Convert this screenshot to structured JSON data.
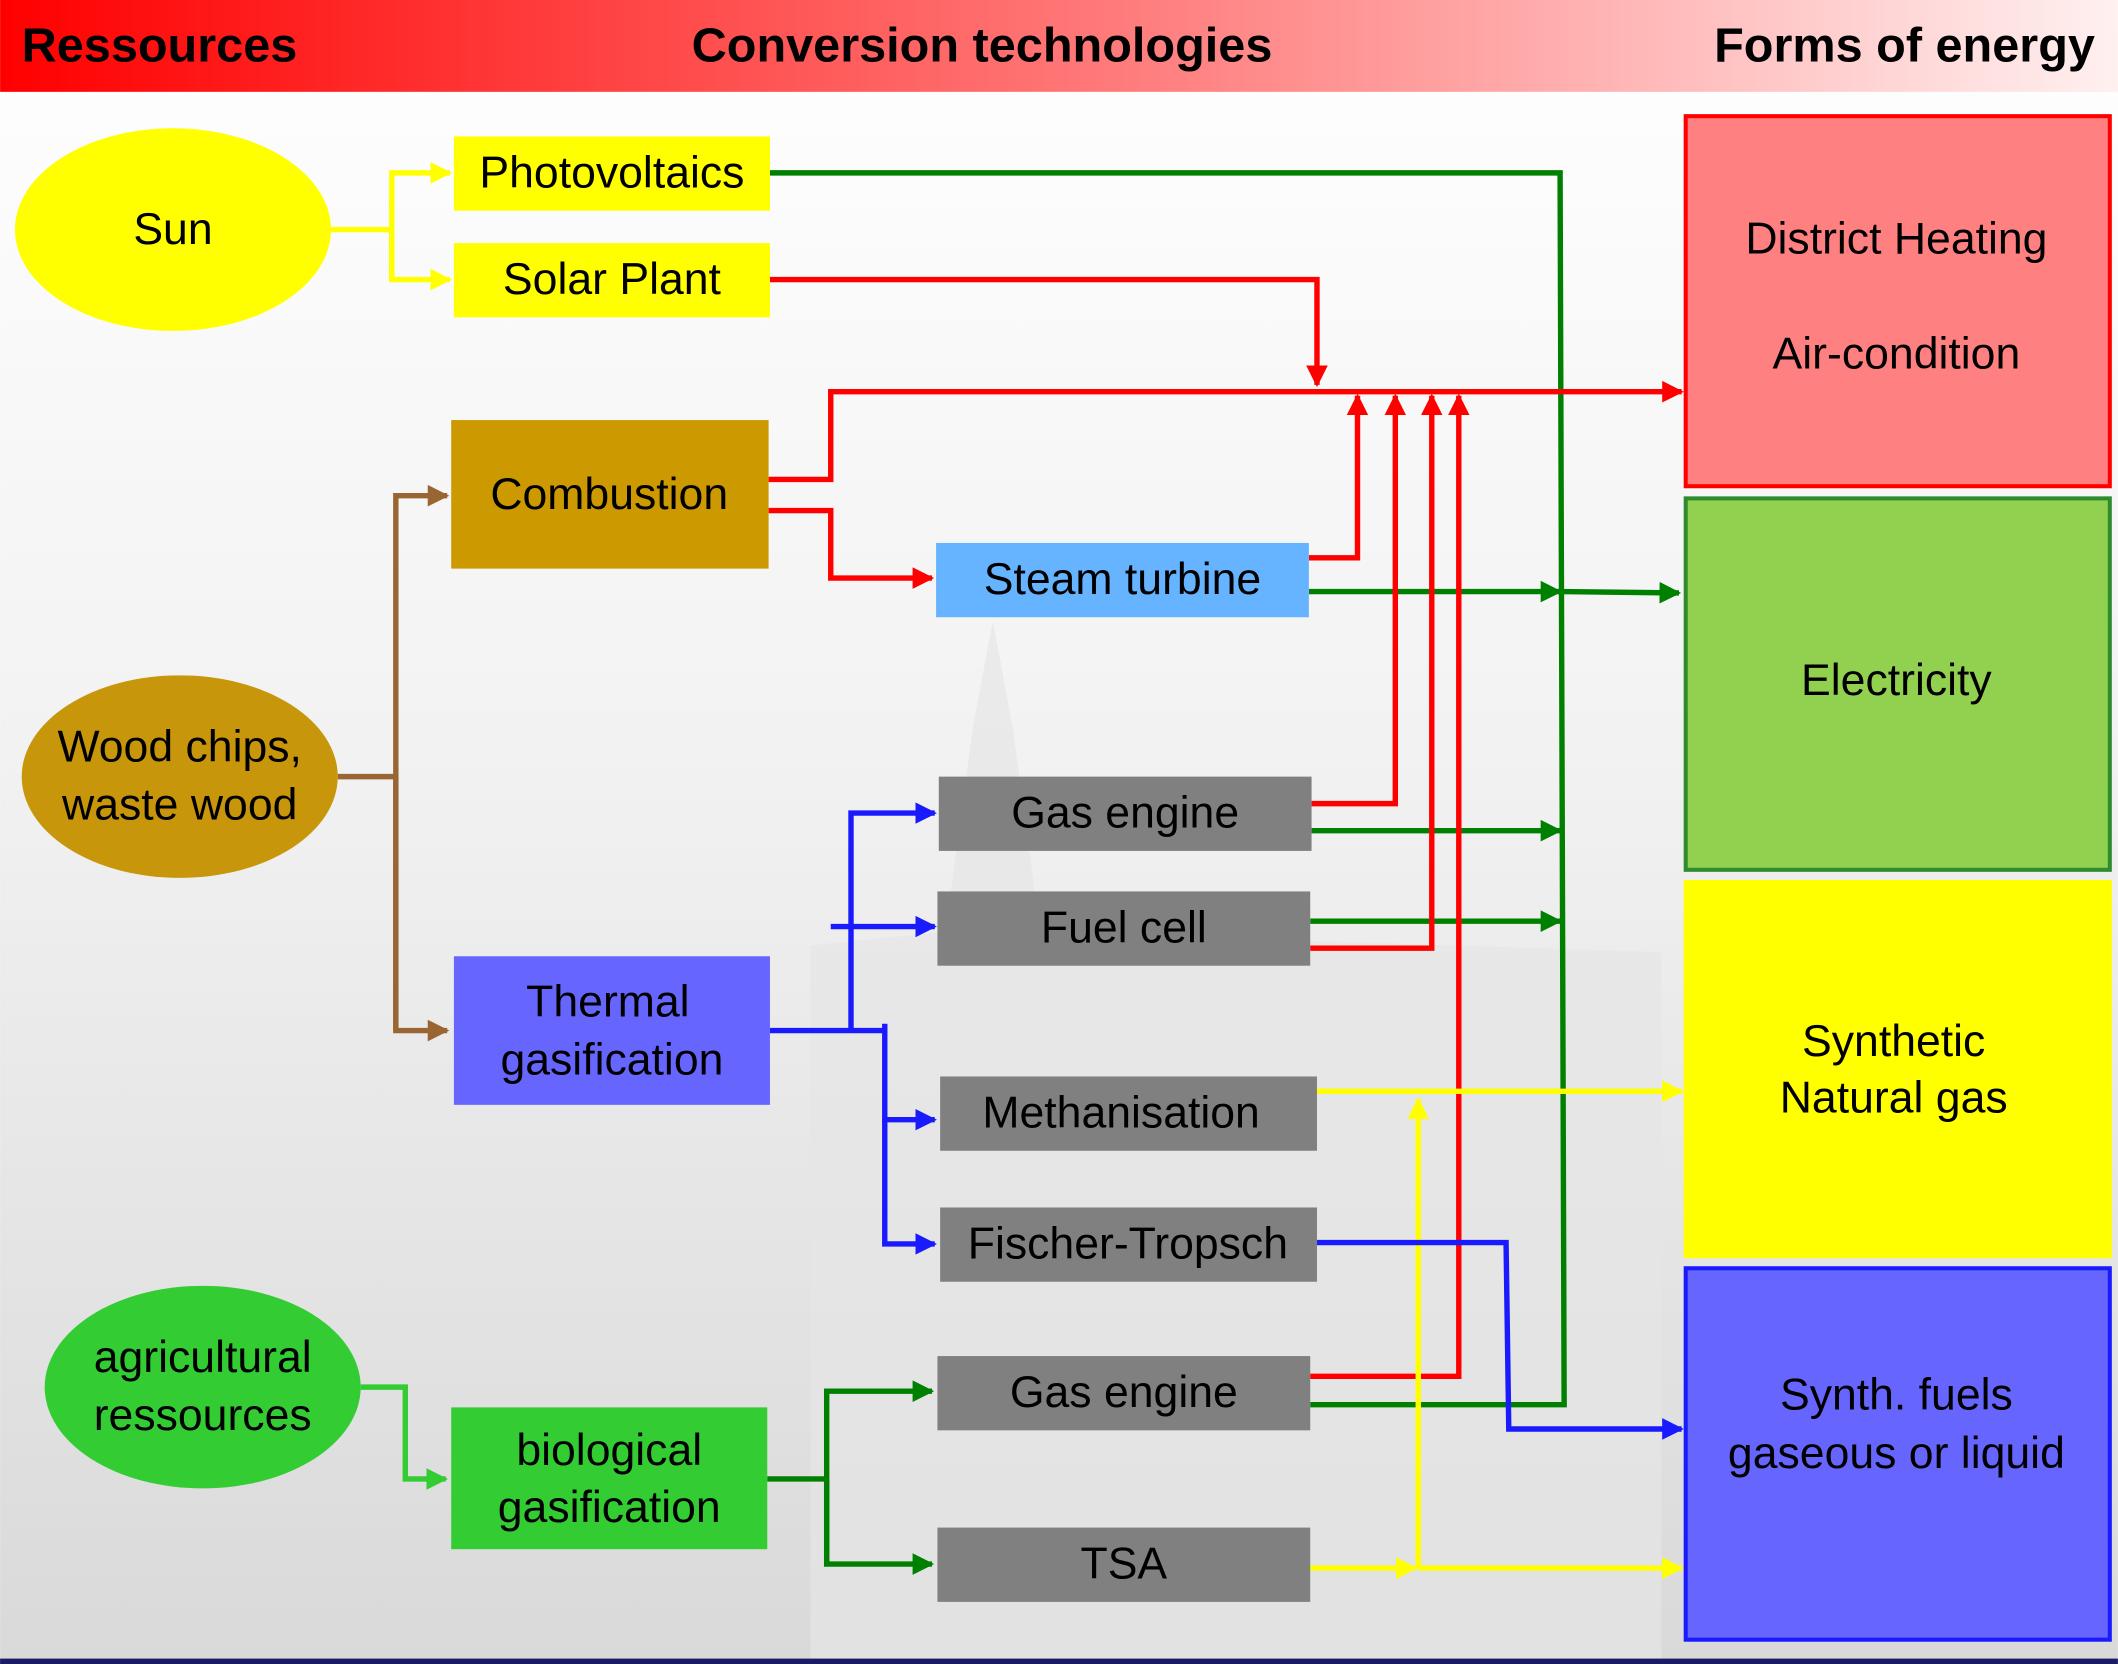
{
  "header": {
    "left": "Ressources",
    "center": "Conversion technologies",
    "right": "Forms of energy"
  },
  "resources": [
    {
      "lines": [
        "Sun"
      ]
    },
    {
      "lines": [
        "Wood chips,",
        "waste wood"
      ]
    },
    {
      "lines": [
        "agricultural",
        "ressources"
      ]
    }
  ],
  "technologies": [
    {
      "lines": [
        "Photovoltaics"
      ]
    },
    {
      "lines": [
        "Solar Plant"
      ]
    },
    {
      "lines": [
        "Combustion"
      ]
    },
    {
      "lines": [
        "Steam turbine"
      ]
    },
    {
      "lines": [
        "Thermal",
        "gasification"
      ]
    },
    {
      "lines": [
        "Gas engine"
      ]
    },
    {
      "lines": [
        "Fuel cell"
      ]
    },
    {
      "lines": [
        "Methanisation"
      ]
    },
    {
      "lines": [
        "Fischer-Tropsch"
      ]
    },
    {
      "lines": [
        "biological",
        "gasification"
      ]
    },
    {
      "lines": [
        "Gas engine"
      ]
    },
    {
      "lines": [
        "TSA"
      ]
    }
  ],
  "outputs": [
    {
      "lines": [
        "District Heating",
        "Air-condition"
      ]
    },
    {
      "lines": [
        "Electricity"
      ]
    },
    {
      "lines": [
        "Synthetic",
        "Natural gas"
      ]
    },
    {
      "lines": [
        "Synth. fuels",
        "gaseous or liquid"
      ]
    }
  ]
}
